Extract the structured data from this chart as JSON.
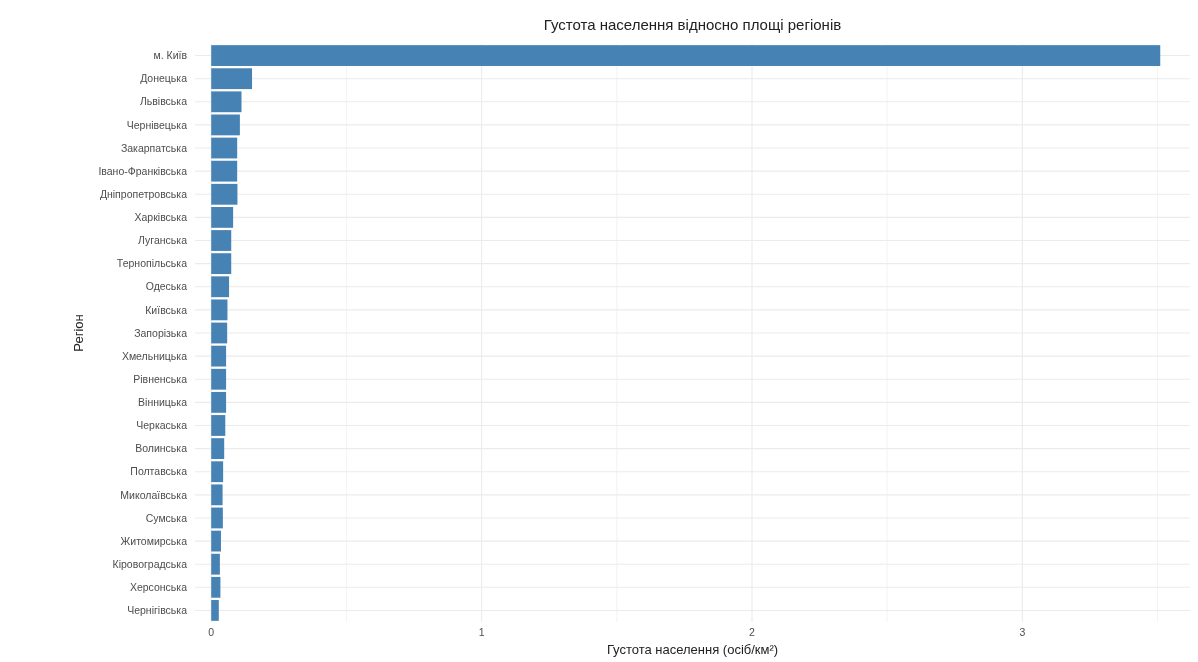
{
  "chart_data": {
    "type": "bar",
    "orientation": "horizontal",
    "title": "Густота населення відносно площі регіонів",
    "xlabel": "Густота населення (осіб/км²)",
    "ylabel": "Регіон",
    "categories": [
      "м. Київ",
      "Донецька",
      "Львівська",
      "Чернівецька",
      "Закарпатська",
      "Івано-Франківська",
      "Дніпропетровська",
      "Харківська",
      "Луганська",
      "Тернопільська",
      "Одеська",
      "Київська",
      "Запорізька",
      "Хмельницька",
      "Рівненська",
      "Вінницька",
      "Черкаська",
      "Волинська",
      "Полтавська",
      "Миколаївська",
      "Сумська",
      "Житомирська",
      "Кіровоградська",
      "Херсонська",
      "Чернігівська"
    ],
    "values": [
      3.51,
      0.151,
      0.112,
      0.106,
      0.096,
      0.096,
      0.097,
      0.081,
      0.074,
      0.074,
      0.066,
      0.06,
      0.059,
      0.055,
      0.055,
      0.055,
      0.052,
      0.048,
      0.044,
      0.042,
      0.043,
      0.036,
      0.032,
      0.034,
      0.028
    ],
    "color": "#4682b4",
    "xlim": [
      -0.06,
      3.62
    ],
    "xticks": [
      0,
      {
        "value": 0.5,
        "label": null
      },
      1,
      {
        "value": 1.5,
        "label": null
      },
      2,
      {
        "value": 2.5,
        "label": null
      },
      3,
      {
        "value": 3.5,
        "label": null
      }
    ],
    "grid": true
  }
}
